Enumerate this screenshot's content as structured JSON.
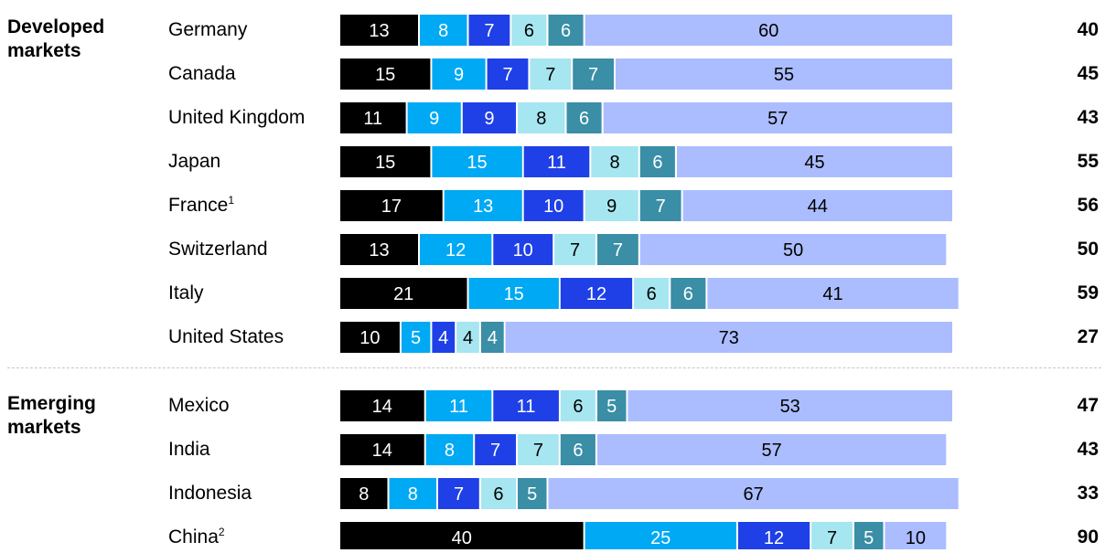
{
  "chart_data": {
    "type": "bar",
    "orientation": "horizontal",
    "stacked": true,
    "xlim": [
      0,
      100
    ],
    "colors": [
      "#000000",
      "#00a9f4",
      "#1f40e6",
      "#a6e6f0",
      "#3a8ea6",
      "#abbdff"
    ],
    "groups": [
      {
        "label": "Developed markets",
        "rows": [
          {
            "label": "Germany",
            "sup": "",
            "segments": [
              13,
              8,
              7,
              6,
              6,
              60
            ],
            "total": "40"
          },
          {
            "label": "Canada",
            "sup": "",
            "segments": [
              15,
              9,
              7,
              7,
              7,
              55
            ],
            "total": "45"
          },
          {
            "label": "United Kingdom",
            "sup": "",
            "segments": [
              11,
              9,
              9,
              8,
              6,
              57
            ],
            "total": "43"
          },
          {
            "label": "Japan",
            "sup": "",
            "segments": [
              15,
              15,
              11,
              8,
              6,
              45
            ],
            "total": "55"
          },
          {
            "label": "France",
            "sup": "1",
            "segments": [
              17,
              13,
              10,
              9,
              7,
              44
            ],
            "total": "56"
          },
          {
            "label": "Switzerland",
            "sup": "",
            "segments": [
              13,
              12,
              10,
              7,
              7,
              50
            ],
            "total": "50"
          },
          {
            "label": "Italy",
            "sup": "",
            "segments": [
              21,
              15,
              12,
              6,
              6,
              41
            ],
            "total": "59"
          },
          {
            "label": "United States",
            "sup": "",
            "segments": [
              10,
              5,
              4,
              4,
              4,
              73
            ],
            "total": "27"
          }
        ]
      },
      {
        "label": "Emerging markets",
        "rows": [
          {
            "label": "Mexico",
            "sup": "",
            "segments": [
              14,
              11,
              11,
              6,
              5,
              53
            ],
            "total": "47"
          },
          {
            "label": "India",
            "sup": "",
            "segments": [
              14,
              8,
              7,
              7,
              6,
              57
            ],
            "total": "43"
          },
          {
            "label": "Indonesia",
            "sup": "",
            "segments": [
              8,
              8,
              7,
              6,
              5,
              67
            ],
            "total": "33"
          },
          {
            "label": "China",
            "sup": "2",
            "segments": [
              40,
              25,
              12,
              7,
              5,
              10
            ],
            "total": "90"
          }
        ]
      }
    ]
  }
}
